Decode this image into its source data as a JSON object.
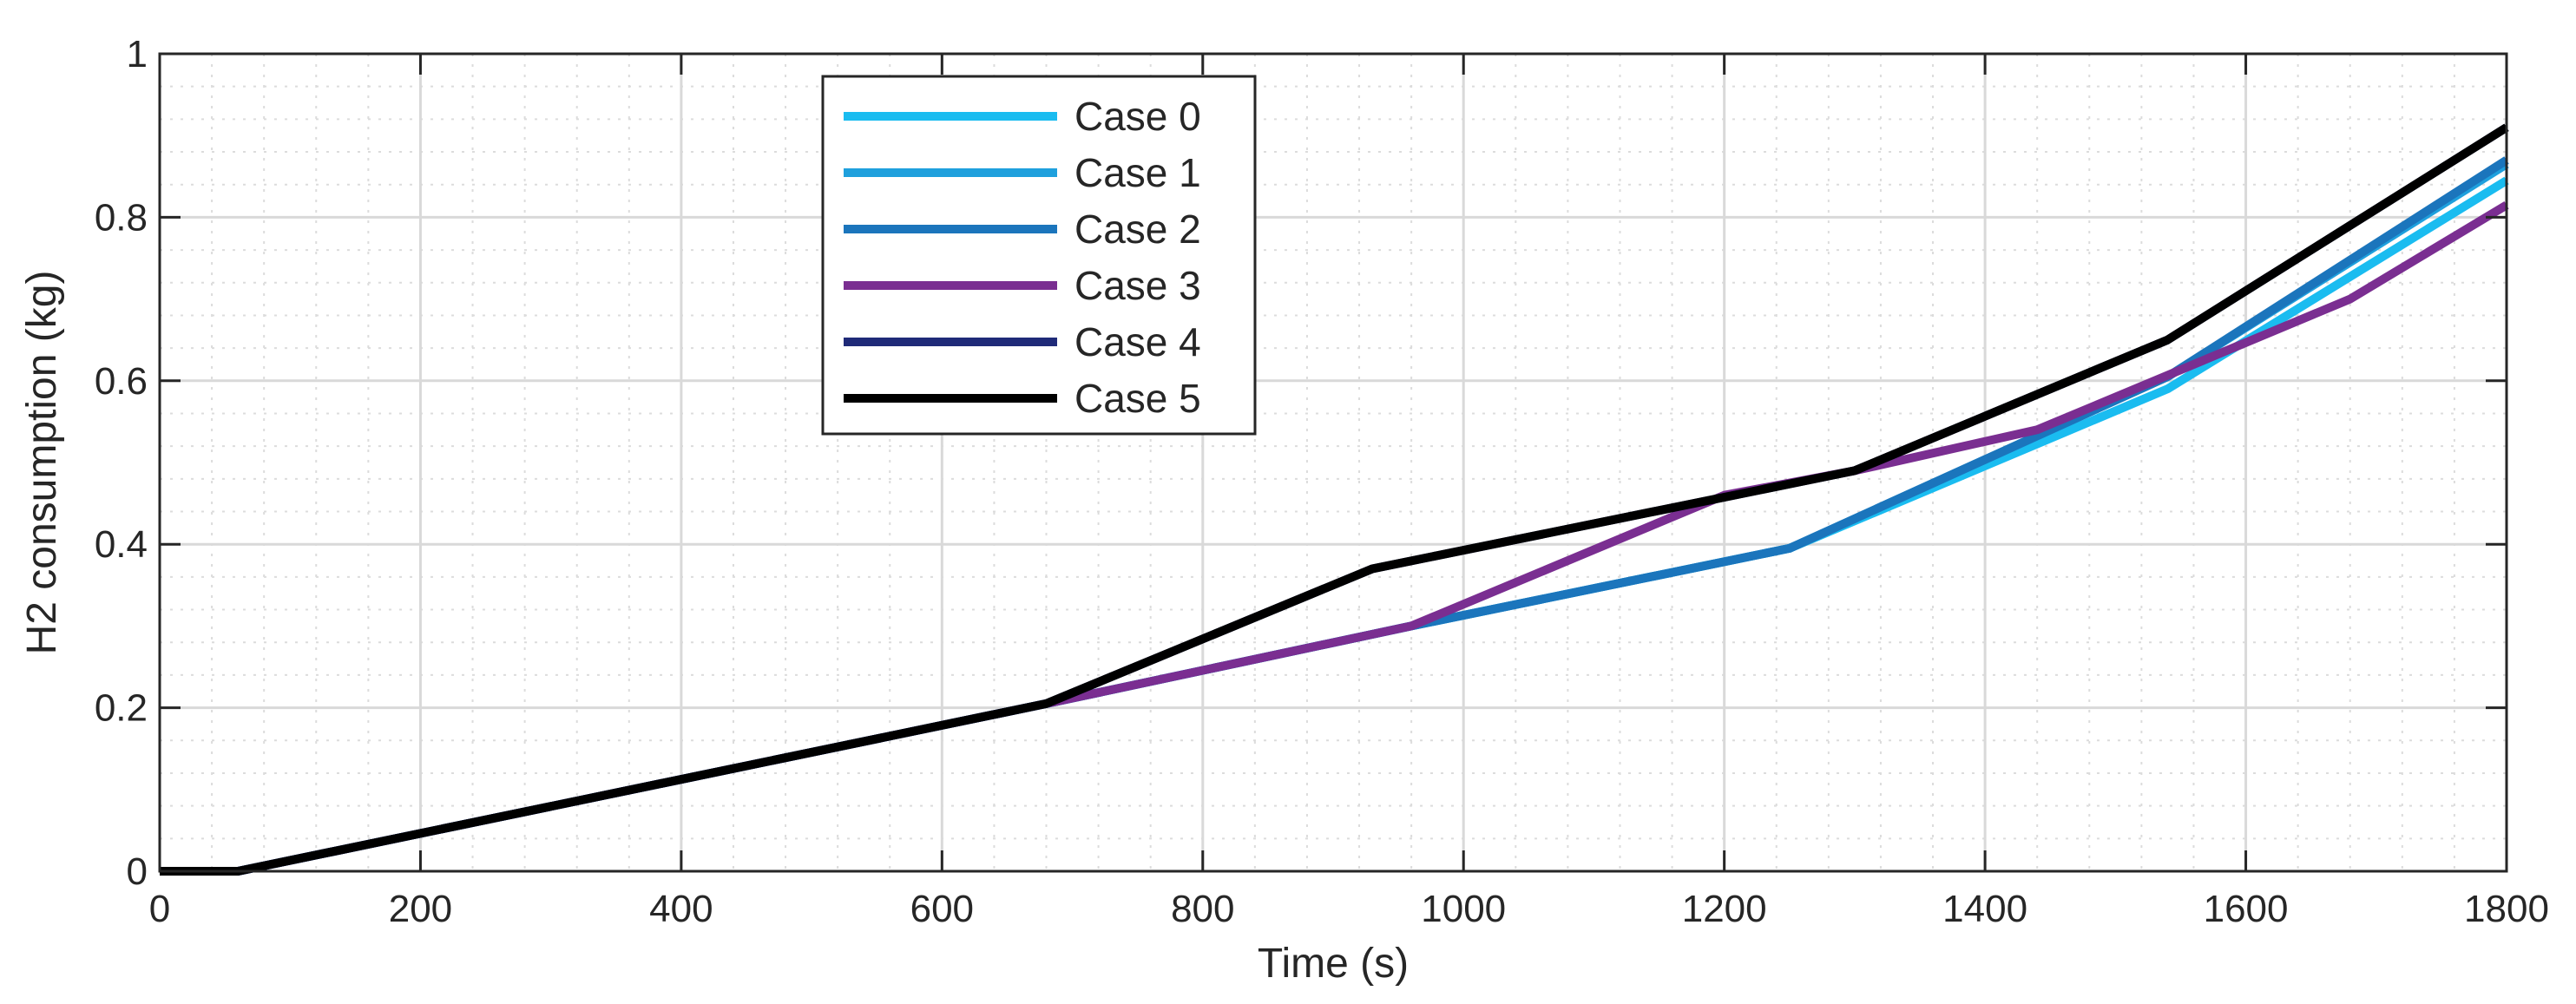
{
  "chart_data": {
    "type": "line",
    "xlabel": "Time (s)",
    "ylabel": "H2 consumption (kg)",
    "xlim": [
      0,
      1800
    ],
    "ylim": [
      0,
      1
    ],
    "xticks": [
      0,
      200,
      400,
      600,
      800,
      1000,
      1200,
      1400,
      1600,
      1800
    ],
    "yticks": [
      0,
      0.2,
      0.4,
      0.6,
      0.8,
      1
    ],
    "ytick_labels": [
      "0",
      "0.2",
      "0.4",
      "0.6",
      "0.8",
      "1"
    ],
    "grid": true,
    "minor_grid": true,
    "legend_position": "top-center",
    "series": [
      {
        "name": "Case 0",
        "color": "#1ABCF0",
        "x": [
          0,
          60,
          680,
          960,
          1250,
          1540,
          1800
        ],
        "y": [
          0,
          0,
          0.205,
          0.3,
          0.395,
          0.59,
          0.845
        ]
      },
      {
        "name": "Case 1",
        "color": "#1FA0DD",
        "x": [
          0,
          60,
          680,
          960,
          1250,
          1540,
          1800
        ],
        "y": [
          0,
          0,
          0.205,
          0.3,
          0.395,
          0.605,
          0.865
        ]
      },
      {
        "name": "Case 2",
        "color": "#1B75BC",
        "x": [
          0,
          60,
          680,
          960,
          1250,
          1540,
          1800
        ],
        "y": [
          0,
          0,
          0.205,
          0.3,
          0.395,
          0.605,
          0.87
        ]
      },
      {
        "name": "Case 3",
        "color": "#7A2E91",
        "x": [
          0,
          60,
          680,
          960,
          1200,
          1300,
          1440,
          1680,
          1800
        ],
        "y": [
          0,
          0,
          0.205,
          0.3,
          0.46,
          0.49,
          0.54,
          0.7,
          0.815
        ]
      },
      {
        "name": "Case 4",
        "color": "#1F2A78",
        "x": [
          0,
          60,
          680,
          930,
          1300,
          1540,
          1800
        ],
        "y": [
          0,
          0,
          0.205,
          0.37,
          0.49,
          0.65,
          0.91
        ]
      },
      {
        "name": "Case 5",
        "color": "#000000",
        "x": [
          0,
          60,
          680,
          930,
          1300,
          1540,
          1800
        ],
        "y": [
          0,
          0,
          0.205,
          0.37,
          0.49,
          0.65,
          0.91
        ]
      }
    ]
  }
}
